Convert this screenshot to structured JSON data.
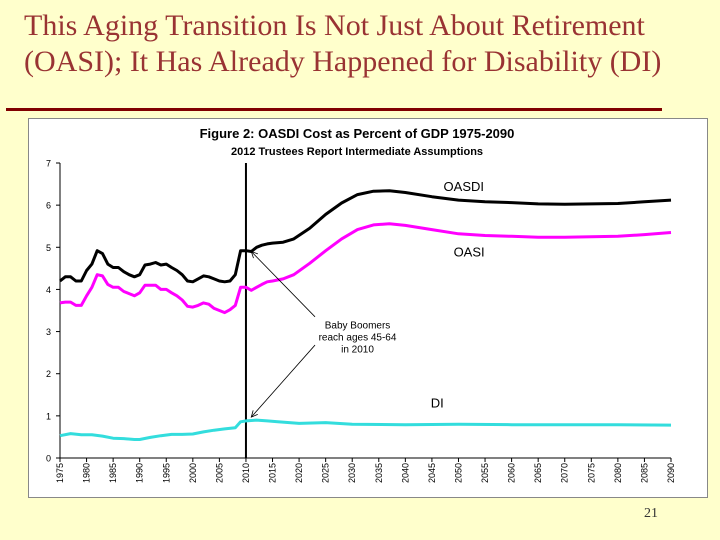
{
  "slide": {
    "title_line1": "This Aging Transition Is Not Just About Retirement",
    "title_line2": "(OASI); It Has Already Happened for Disability (DI)",
    "page_number": "21"
  },
  "colors": {
    "background": "#ffffcc",
    "title": "#993333",
    "rule": "#800000",
    "oasdi": "#000000",
    "oasi": "#ff00ff",
    "di": "#33dddd"
  },
  "chart_data": {
    "type": "line",
    "title": "Figure 2:   OASDI Cost as Percent of GDP 1975-2090",
    "subtitle": "2012 Trustees Report Intermediate Assumptions",
    "xlabel": "",
    "ylabel": "",
    "xlim": [
      1975,
      2090
    ],
    "ylim": [
      0,
      7
    ],
    "yticks": [
      0,
      1,
      2,
      3,
      4,
      5,
      6,
      7
    ],
    "xticks": [
      1975,
      1980,
      1985,
      1990,
      1995,
      2000,
      2005,
      2010,
      2015,
      2020,
      2025,
      2030,
      2035,
      2040,
      2045,
      2050,
      2055,
      2060,
      2065,
      2070,
      2075,
      2080,
      2085,
      2090
    ],
    "grid": false,
    "vertical_marker_x": 2010,
    "series": [
      {
        "name": "OASDI",
        "color": "#000000",
        "points": [
          [
            1975,
            4.2
          ],
          [
            1976,
            4.3
          ],
          [
            1977,
            4.3
          ],
          [
            1978,
            4.2
          ],
          [
            1979,
            4.2
          ],
          [
            1980,
            4.45
          ],
          [
            1981,
            4.6
          ],
          [
            1982,
            4.92
          ],
          [
            1983,
            4.85
          ],
          [
            1984,
            4.6
          ],
          [
            1985,
            4.52
          ],
          [
            1986,
            4.52
          ],
          [
            1987,
            4.42
          ],
          [
            1988,
            4.35
          ],
          [
            1989,
            4.3
          ],
          [
            1990,
            4.35
          ],
          [
            1991,
            4.58
          ],
          [
            1992,
            4.6
          ],
          [
            1993,
            4.64
          ],
          [
            1994,
            4.58
          ],
          [
            1995,
            4.6
          ],
          [
            1996,
            4.52
          ],
          [
            1997,
            4.45
          ],
          [
            1998,
            4.35
          ],
          [
            1999,
            4.2
          ],
          [
            2000,
            4.18
          ],
          [
            2001,
            4.25
          ],
          [
            2002,
            4.32
          ],
          [
            2003,
            4.3
          ],
          [
            2004,
            4.25
          ],
          [
            2005,
            4.2
          ],
          [
            2006,
            4.18
          ],
          [
            2007,
            4.2
          ],
          [
            2008,
            4.35
          ],
          [
            2009,
            4.92
          ],
          [
            2010,
            4.92
          ],
          [
            2011,
            4.9
          ],
          [
            2012,
            5.0
          ],
          [
            2013,
            5.05
          ],
          [
            2014,
            5.08
          ],
          [
            2015,
            5.1
          ],
          [
            2017,
            5.12
          ],
          [
            2019,
            5.2
          ],
          [
            2022,
            5.45
          ],
          [
            2025,
            5.78
          ],
          [
            2028,
            6.05
          ],
          [
            2031,
            6.25
          ],
          [
            2034,
            6.33
          ],
          [
            2037,
            6.34
          ],
          [
            2040,
            6.3
          ],
          [
            2045,
            6.2
          ],
          [
            2050,
            6.12
          ],
          [
            2055,
            6.08
          ],
          [
            2060,
            6.06
          ],
          [
            2065,
            6.03
          ],
          [
            2070,
            6.02
          ],
          [
            2075,
            6.03
          ],
          [
            2080,
            6.04
          ],
          [
            2085,
            6.08
          ],
          [
            2090,
            6.12
          ]
        ]
      },
      {
        "name": "OASI",
        "color": "#ff00ff",
        "points": [
          [
            1975,
            3.68
          ],
          [
            1976,
            3.7
          ],
          [
            1977,
            3.7
          ],
          [
            1978,
            3.62
          ],
          [
            1979,
            3.62
          ],
          [
            1980,
            3.85
          ],
          [
            1981,
            4.05
          ],
          [
            1982,
            4.35
          ],
          [
            1983,
            4.32
          ],
          [
            1984,
            4.12
          ],
          [
            1985,
            4.05
          ],
          [
            1986,
            4.05
          ],
          [
            1987,
            3.95
          ],
          [
            1988,
            3.9
          ],
          [
            1989,
            3.85
          ],
          [
            1990,
            3.92
          ],
          [
            1991,
            4.1
          ],
          [
            1992,
            4.1
          ],
          [
            1993,
            4.1
          ],
          [
            1994,
            4.0
          ],
          [
            1995,
            4.0
          ],
          [
            1996,
            3.92
          ],
          [
            1997,
            3.85
          ],
          [
            1998,
            3.75
          ],
          [
            1999,
            3.6
          ],
          [
            2000,
            3.58
          ],
          [
            2001,
            3.62
          ],
          [
            2002,
            3.68
          ],
          [
            2003,
            3.65
          ],
          [
            2004,
            3.55
          ],
          [
            2005,
            3.5
          ],
          [
            2006,
            3.45
          ],
          [
            2007,
            3.52
          ],
          [
            2008,
            3.62
          ],
          [
            2009,
            4.05
          ],
          [
            2010,
            4.05
          ],
          [
            2011,
            3.98
          ],
          [
            2012,
            4.05
          ],
          [
            2013,
            4.12
          ],
          [
            2014,
            4.18
          ],
          [
            2015,
            4.2
          ],
          [
            2017,
            4.25
          ],
          [
            2019,
            4.35
          ],
          [
            2022,
            4.62
          ],
          [
            2025,
            4.92
          ],
          [
            2028,
            5.2
          ],
          [
            2031,
            5.42
          ],
          [
            2034,
            5.53
          ],
          [
            2037,
            5.56
          ],
          [
            2040,
            5.52
          ],
          [
            2045,
            5.42
          ],
          [
            2050,
            5.32
          ],
          [
            2055,
            5.28
          ],
          [
            2060,
            5.26
          ],
          [
            2065,
            5.24
          ],
          [
            2070,
            5.24
          ],
          [
            2075,
            5.25
          ],
          [
            2080,
            5.26
          ],
          [
            2085,
            5.3
          ],
          [
            2090,
            5.35
          ]
        ]
      },
      {
        "name": "DI",
        "color": "#33dddd",
        "points": [
          [
            1975,
            0.53
          ],
          [
            1977,
            0.58
          ],
          [
            1979,
            0.55
          ],
          [
            1981,
            0.55
          ],
          [
            1983,
            0.52
          ],
          [
            1985,
            0.47
          ],
          [
            1987,
            0.46
          ],
          [
            1989,
            0.44
          ],
          [
            1990,
            0.44
          ],
          [
            1992,
            0.49
          ],
          [
            1994,
            0.53
          ],
          [
            1996,
            0.56
          ],
          [
            1998,
            0.56
          ],
          [
            2000,
            0.57
          ],
          [
            2002,
            0.62
          ],
          [
            2004,
            0.66
          ],
          [
            2006,
            0.69
          ],
          [
            2008,
            0.72
          ],
          [
            2009,
            0.86
          ],
          [
            2010,
            0.88
          ],
          [
            2012,
            0.9
          ],
          [
            2014,
            0.88
          ],
          [
            2016,
            0.86
          ],
          [
            2020,
            0.82
          ],
          [
            2025,
            0.84
          ],
          [
            2030,
            0.8
          ],
          [
            2040,
            0.79
          ],
          [
            2050,
            0.8
          ],
          [
            2060,
            0.79
          ],
          [
            2070,
            0.79
          ],
          [
            2080,
            0.79
          ],
          [
            2090,
            0.78
          ]
        ]
      }
    ],
    "series_labels": [
      {
        "text": "OASDI",
        "x": 2051,
        "y": 6.33
      },
      {
        "text": "OASI",
        "x": 2052,
        "y": 4.78
      },
      {
        "text": "DI",
        "x": 2046,
        "y": 1.2
      }
    ],
    "annotation": {
      "lines": [
        "Baby Boomers",
        "reach ages 45-64",
        "in 2010"
      ],
      "x": 2031,
      "y": 3.07,
      "arrow_targets": [
        [
          2011,
          4.9
        ],
        [
          2011,
          0.97
        ]
      ],
      "arrow_sources": [
        [
          2023,
          3.35
        ],
        [
          2023,
          2.68
        ]
      ]
    }
  }
}
